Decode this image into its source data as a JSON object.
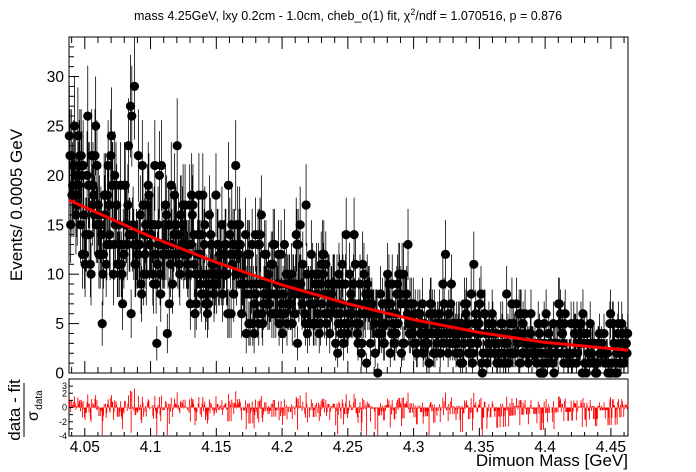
{
  "chart_data": {
    "type": "scatter",
    "title": "mass 4.25GeV, lxy 0.2cm - 1.0cm, cheb_o(1) fit, χ²/ndf = 1.070516, p = 0.876",
    "title_parts": {
      "prefix": "mass 4.25GeV, lxy 0.2cm - 1.0cm, cheb_o(1) fit, χ",
      "sup": "2",
      "suffix": "/ndf = 1.070516, p = 0.876"
    },
    "xlabel": "Dimuon Mass [GeV]",
    "ylabel": "Events/ 0.0005 GeV",
    "xlim": [
      4.038,
      4.463
    ],
    "ylim": [
      0,
      34
    ],
    "x_ticks": [
      4.05,
      4.1,
      4.15,
      4.2,
      4.25,
      4.3,
      4.35,
      4.4,
      4.45
    ],
    "x_tick_labels": [
      "4.05",
      "4.1",
      "4.15",
      "4.2",
      "4.25",
      "4.3",
      "4.35",
      "4.4",
      "4.45"
    ],
    "y_ticks": [
      0,
      5,
      10,
      15,
      20,
      25,
      30
    ],
    "y_tick_labels": [
      "0",
      "5",
      "10",
      "15",
      "20",
      "25",
      "30"
    ],
    "bin_width": 0.0005,
    "series": [
      {
        "kind": "data",
        "marker": "circle",
        "color": "#000000",
        "sample_points": [
          {
            "x": 4.0395,
            "y": 22
          },
          {
            "x": 4.0405,
            "y": 19
          },
          {
            "x": 4.042,
            "y": 25
          },
          {
            "x": 4.0445,
            "y": 24
          },
          {
            "x": 4.0475,
            "y": 20
          },
          {
            "x": 4.052,
            "y": 26
          },
          {
            "x": 4.055,
            "y": 22
          },
          {
            "x": 4.07,
            "y": 24
          },
          {
            "x": 4.0855,
            "y": 26
          },
          {
            "x": 4.0875,
            "y": 29
          },
          {
            "x": 4.1045,
            "y": 3
          },
          {
            "x": 4.1125,
            "y": 4
          },
          {
            "x": 4.1645,
            "y": 21
          },
          {
            "x": 4.218,
            "y": 17
          },
          {
            "x": 4.2725,
            "y": 0
          },
          {
            "x": 4.352,
            "y": 0
          },
          {
            "x": 4.397,
            "y": 0
          },
          {
            "x": 4.431,
            "y": 0
          }
        ]
      },
      {
        "kind": "fit",
        "color": "#ff0000",
        "points": [
          {
            "x": 4.038,
            "y": 17.5
          },
          {
            "x": 4.1,
            "y": 13.8
          },
          {
            "x": 4.15,
            "y": 11.2
          },
          {
            "x": 4.2,
            "y": 8.9
          },
          {
            "x": 4.25,
            "y": 7.0
          },
          {
            "x": 4.3,
            "y": 5.4
          },
          {
            "x": 4.35,
            "y": 4.1
          },
          {
            "x": 4.4,
            "y": 3.1
          },
          {
            "x": 4.463,
            "y": 2.3
          }
        ]
      }
    ],
    "residual_panel": {
      "ylabel_main": "data - fit",
      "ylabel_sub": "σ",
      "ylabel_subscript": "data",
      "ylim": [
        -4,
        4
      ],
      "y_tick_labels": [
        "-4",
        "-2",
        "0",
        "2",
        "3"
      ],
      "color": "#ff0000"
    }
  }
}
